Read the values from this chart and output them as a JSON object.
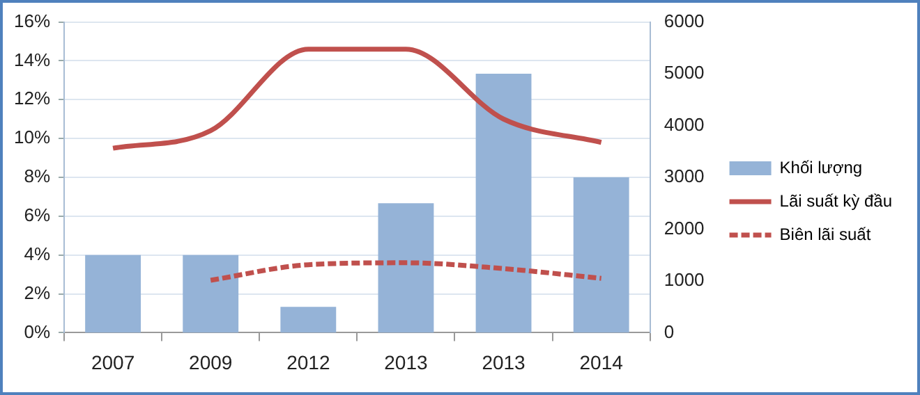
{
  "chart_data": {
    "type": "bar",
    "categories": [
      "2007",
      "2009",
      "2012",
      "2013",
      "2013",
      "2014"
    ],
    "series": [
      {
        "name": "Khối lượng",
        "axis": "y2",
        "color": "#95b3d7",
        "values": [
          1500,
          1500,
          500,
          2500,
          5000,
          3000
        ]
      },
      {
        "name": "Lãi suất kỳ đầu",
        "type": "line",
        "color": "#c0504d",
        "line_style": "solid",
        "values": [
          9.5,
          10.4,
          14.6,
          14.6,
          11.0,
          9.8
        ]
      },
      {
        "name": "Biên lãi suất",
        "type": "line",
        "color": "#c0504d",
        "line_style": "dashed",
        "values": [
          null,
          2.7,
          3.5,
          3.6,
          3.3,
          2.8
        ]
      }
    ],
    "ylim": [
      0,
      16
    ],
    "yticks": [
      {
        "value": 0,
        "label": "0%"
      },
      {
        "value": 2,
        "label": "2%"
      },
      {
        "value": 4,
        "label": "4%"
      },
      {
        "value": 6,
        "label": "6%"
      },
      {
        "value": 8,
        "label": "8%"
      },
      {
        "value": 10,
        "label": "10%"
      },
      {
        "value": 12,
        "label": "12%"
      },
      {
        "value": 14,
        "label": "14%"
      },
      {
        "value": 16,
        "label": "16%"
      }
    ],
    "y2lim": [
      0,
      6000
    ],
    "y2ticks": [
      0,
      1000,
      2000,
      3000,
      4000,
      5000,
      6000
    ],
    "grid": "y",
    "legend": "right",
    "marker": "none"
  }
}
